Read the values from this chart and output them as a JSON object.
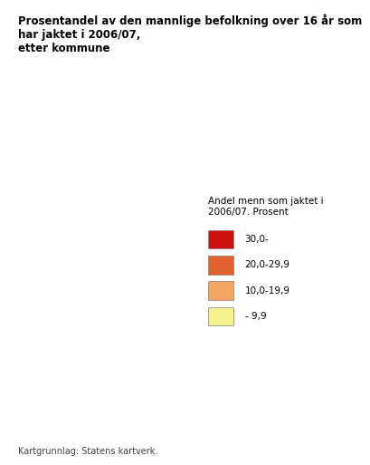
{
  "title": "Prosentandel av den mannlige befolkning over 16 år som har jaktet i 2006/07,\netter kommune",
  "title_fontsize": 8.5,
  "title_fontweight": "bold",
  "footnote": "Kartgrunnlag: Statens kartverk.",
  "footnote_fontsize": 7,
  "legend_title": "Andel menn som jaktet i\n2006/07. Prosent",
  "legend_title_fontsize": 7.5,
  "legend_labels": [
    "- 9,9",
    "10,0-19,9",
    "20,0-29,9",
    "30,0-"
  ],
  "legend_colors": [
    "#FFFAAA",
    "#F4A460",
    "#E05020",
    "#CC0000"
  ],
  "legend_colors_display": [
    "#F5F0A0",
    "#F4A460",
    "#E06030",
    "#CC1010"
  ],
  "background_color": "#ffffff",
  "map_background": "#d0e8f0",
  "figsize": [
    4.1,
    5.13
  ],
  "dpi": 100
}
